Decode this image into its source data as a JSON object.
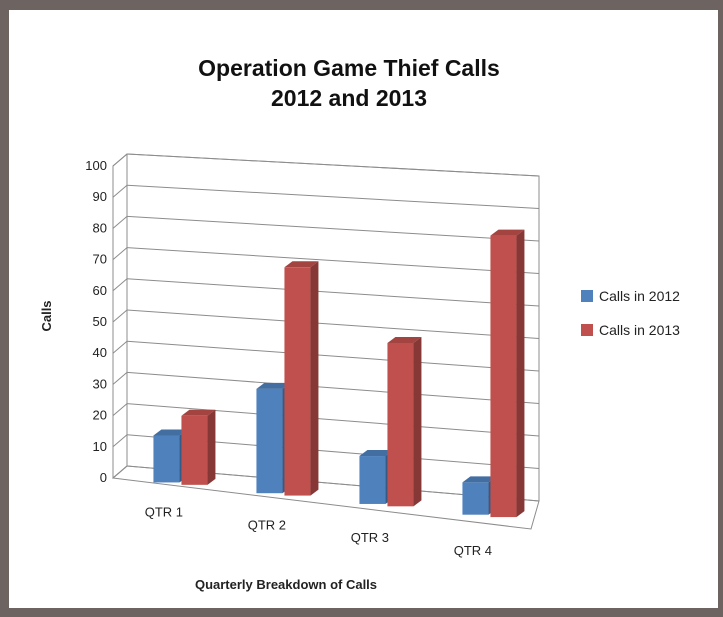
{
  "chart_data": {
    "type": "bar",
    "title": [
      "Operation Game Thief Calls",
      "2012 and 2013"
    ],
    "xlabel": "Quarterly Breakdown of Calls",
    "ylabel": "Calls",
    "categories": [
      "QTR 1",
      "QTR 2",
      "QTR 3",
      "QTR 4"
    ],
    "ylim": [
      0,
      100
    ],
    "yticks": [
      0,
      10,
      20,
      30,
      40,
      50,
      60,
      70,
      80,
      90,
      100
    ],
    "grid": true,
    "legend_position": "right",
    "series": [
      {
        "name": "Calls in 2012",
        "color": "#4f81bd",
        "values": [
          15,
          33,
          15,
          10
        ]
      },
      {
        "name": "Calls in 2013",
        "color": "#c0504d",
        "values": [
          22,
          72,
          51,
          87
        ]
      }
    ]
  }
}
